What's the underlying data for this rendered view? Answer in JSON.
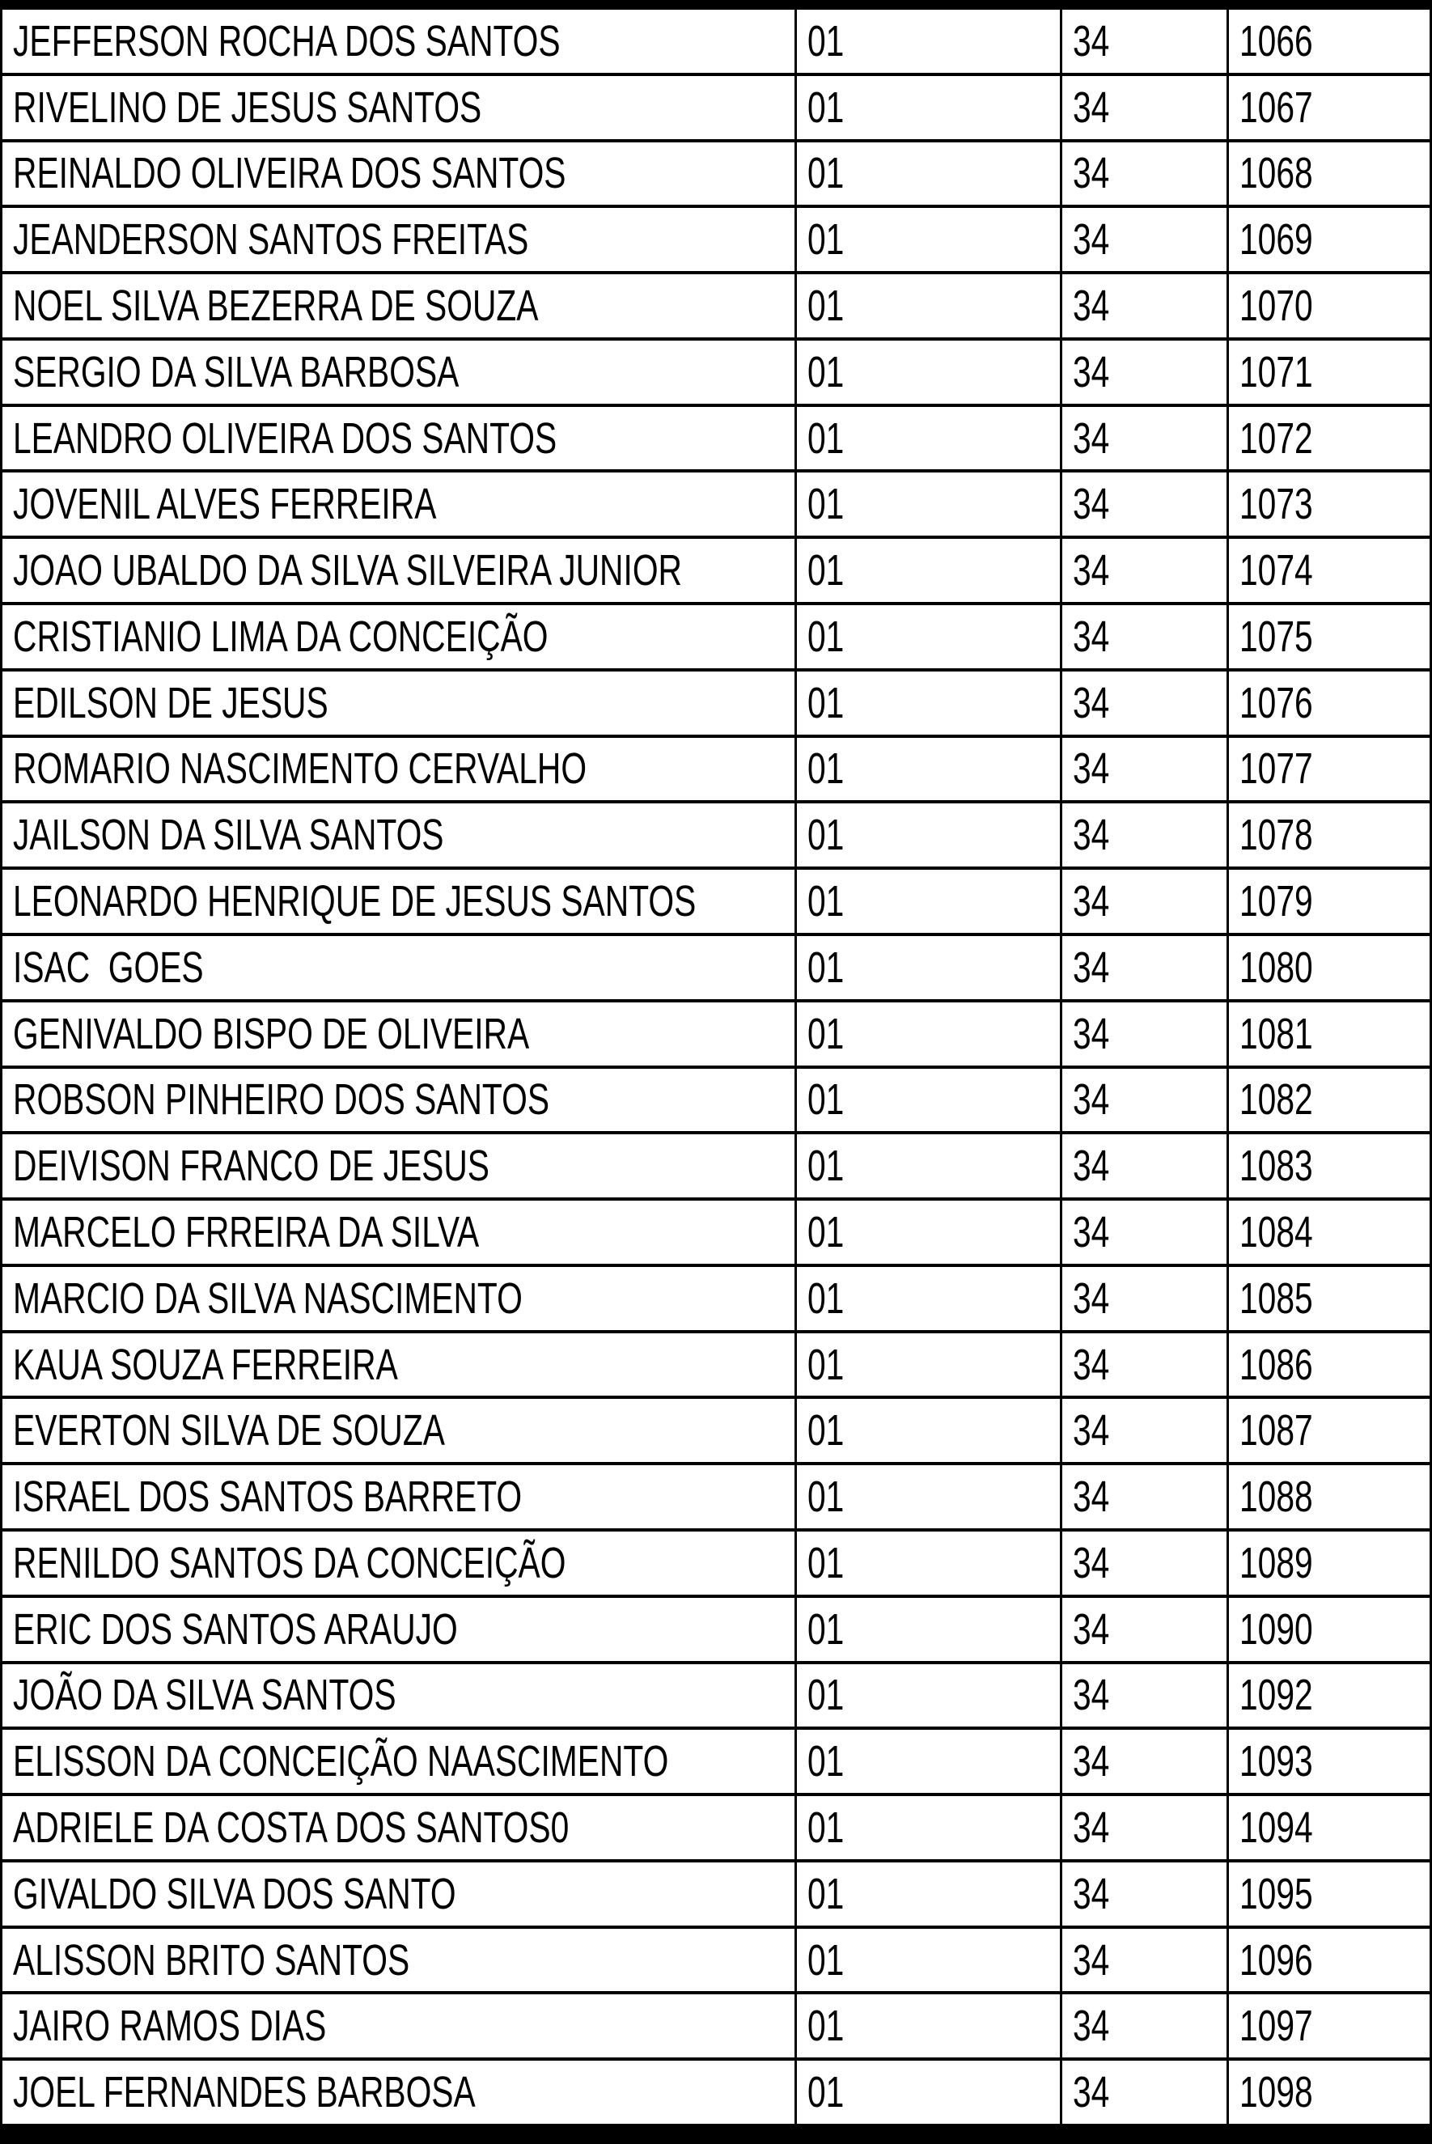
{
  "colors": {
    "background": "#ffffff",
    "text": "#000000",
    "border": "#000000",
    "band": "#000000"
  },
  "table": {
    "rows": [
      [
        "JEFFERSON ROCHA DOS SANTOS",
        "01",
        "34",
        "1066"
      ],
      [
        "RIVELINO DE JESUS SANTOS",
        "01",
        "34",
        "1067"
      ],
      [
        "REINALDO OLIVEIRA DOS SANTOS",
        "01",
        "34",
        "1068"
      ],
      [
        "JEANDERSON SANTOS FREITAS",
        "01",
        "34",
        "1069"
      ],
      [
        "NOEL SILVA BEZERRA DE SOUZA",
        "01",
        "34",
        "1070"
      ],
      [
        "SERGIO DA SILVA BARBOSA",
        "01",
        "34",
        "1071"
      ],
      [
        "LEANDRO OLIVEIRA DOS SANTOS",
        "01",
        "34",
        "1072"
      ],
      [
        "JOVENIL ALVES FERREIRA",
        "01",
        "34",
        "1073"
      ],
      [
        "JOAO UBALDO DA SILVA SILVEIRA JUNIOR",
        "01",
        "34",
        "1074"
      ],
      [
        "CRISTIANIO LIMA DA CONCEIÇÃO",
        "01",
        "34",
        "1075"
      ],
      [
        "EDILSON DE JESUS",
        "01",
        "34",
        "1076"
      ],
      [
        "ROMARIO NASCIMENTO CERVALHO",
        "01",
        "34",
        "1077"
      ],
      [
        "JAILSON DA SILVA SANTOS",
        "01",
        "34",
        "1078"
      ],
      [
        "LEONARDO HENRIQUE DE JESUS SANTOS",
        "01",
        "34",
        "1079"
      ],
      [
        "ISAC  GOES",
        "01",
        "34",
        "1080"
      ],
      [
        "GENIVALDO BISPO DE OLIVEIRA",
        "01",
        "34",
        "1081"
      ],
      [
        "ROBSON PINHEIRO DOS SANTOS",
        "01",
        "34",
        "1082"
      ],
      [
        "DEIVISON FRANCO DE JESUS",
        "01",
        "34",
        "1083"
      ],
      [
        "MARCELO FRREIRA DA SILVA",
        "01",
        "34",
        "1084"
      ],
      [
        "MARCIO DA SILVA NASCIMENTO",
        "01",
        "34",
        "1085"
      ],
      [
        "KAUA SOUZA FERREIRA",
        "01",
        "34",
        "1086"
      ],
      [
        "EVERTON SILVA DE SOUZA",
        "01",
        "34",
        "1087"
      ],
      [
        "ISRAEL DOS SANTOS BARRETO",
        "01",
        "34",
        "1088"
      ],
      [
        "RENILDO SANTOS DA CONCEIÇÃO",
        "01",
        "34",
        "1089"
      ],
      [
        "ERIC DOS SANTOS ARAUJO",
        "01",
        "34",
        "1090"
      ],
      [
        "JOÃO DA SILVA SANTOS",
        "01",
        "34",
        "1092"
      ],
      [
        "ELISSON DA CONCEIÇÃO NAASCIMENTO",
        "01",
        "34",
        "1093"
      ],
      [
        "ADRIELE DA COSTA DOS SANTOS0",
        "01",
        "34",
        "1094"
      ],
      [
        "GIVALDO SILVA DOS SANTO",
        "01",
        "34",
        "1095"
      ],
      [
        "ALISSON BRITO SANTOS",
        "01",
        "34",
        "1096"
      ],
      [
        "JAIRO RAMOS DIAS",
        "01",
        "34",
        "1097"
      ],
      [
        "JOEL FERNANDES BARBOSA",
        "01",
        "34",
        "1098"
      ]
    ]
  }
}
